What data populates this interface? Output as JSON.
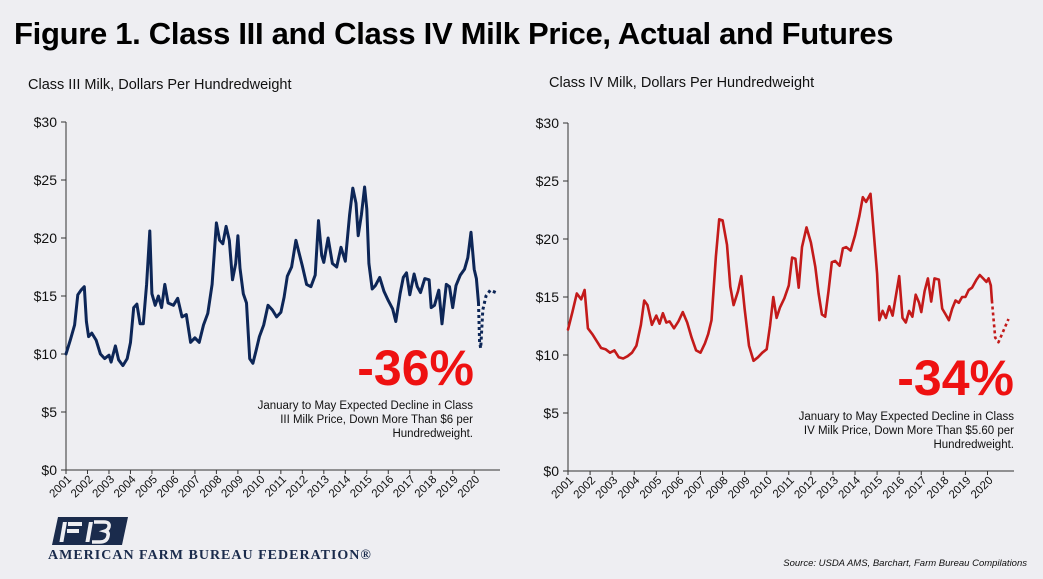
{
  "figure_title": "Figure 1. Class III and Class IV Milk Price, Actual and Futures",
  "source": "Source: USDA AMS, Barchart, Farm Bureau Compilations",
  "org_name": "AMERICAN FARM BUREAU FEDERATION®",
  "colors": {
    "class3": "#0d2657",
    "class4": "#c31a1a",
    "callout": "#ee1111",
    "background": "#eeeef2"
  },
  "chart_data": [
    {
      "type": "line",
      "ylabel": "Class III Milk, Dollars Per Hundredweight",
      "ylim": [
        0,
        30
      ],
      "xlim": [
        2001,
        2021.2
      ],
      "y_ticks": [
        0,
        5,
        10,
        15,
        20,
        25,
        30
      ],
      "y_tick_labels": [
        "$0",
        "$5",
        "$10",
        "$15",
        "$20",
        "$25",
        "$30"
      ],
      "x_tick_labels": [
        "2001",
        "2002",
        "2003",
        "2004",
        "2005",
        "2006",
        "2007",
        "2008",
        "2009",
        "2010",
        "2011",
        "2012",
        "2013",
        "2014",
        "2015",
        "2016",
        "2017",
        "2018",
        "2019",
        "2020"
      ],
      "callout_value": "-36%",
      "callout_text": [
        "January to May Expected Decline in Class",
        "III Milk Price, Down More Than $6 per",
        "Hundredweight."
      ],
      "series": [
        {
          "style": "solid",
          "points": [
            [
              2001.0,
              10.0
            ],
            [
              2001.2,
              11.2
            ],
            [
              2001.4,
              12.5
            ],
            [
              2001.55,
              15.1
            ],
            [
              2001.7,
              15.5
            ],
            [
              2001.85,
              15.8
            ],
            [
              2001.95,
              12.8
            ],
            [
              2002.05,
              11.5
            ],
            [
              2002.2,
              11.8
            ],
            [
              2002.4,
              11.2
            ],
            [
              2002.6,
              10.0
            ],
            [
              2002.8,
              9.6
            ],
            [
              2003.0,
              9.9
            ],
            [
              2003.1,
              9.3
            ],
            [
              2003.3,
              10.7
            ],
            [
              2003.45,
              9.5
            ],
            [
              2003.65,
              9.0
            ],
            [
              2003.85,
              9.6
            ],
            [
              2004.0,
              11.0
            ],
            [
              2004.15,
              14.0
            ],
            [
              2004.3,
              14.3
            ],
            [
              2004.45,
              12.6
            ],
            [
              2004.6,
              12.6
            ],
            [
              2004.75,
              16.0
            ],
            [
              2004.9,
              20.6
            ],
            [
              2005.0,
              15.2
            ],
            [
              2005.15,
              14.2
            ],
            [
              2005.3,
              15.0
            ],
            [
              2005.45,
              14.0
            ],
            [
              2005.6,
              16.0
            ],
            [
              2005.75,
              14.4
            ],
            [
              2006.0,
              14.2
            ],
            [
              2006.2,
              14.8
            ],
            [
              2006.4,
              13.2
            ],
            [
              2006.6,
              13.4
            ],
            [
              2006.8,
              11.0
            ],
            [
              2007.0,
              11.4
            ],
            [
              2007.2,
              11.0
            ],
            [
              2007.4,
              12.5
            ],
            [
              2007.6,
              13.5
            ],
            [
              2007.8,
              16.0
            ],
            [
              2008.0,
              21.3
            ],
            [
              2008.15,
              19.8
            ],
            [
              2008.3,
              19.5
            ],
            [
              2008.45,
              21.0
            ],
            [
              2008.6,
              19.8
            ],
            [
              2008.75,
              16.4
            ],
            [
              2008.9,
              17.8
            ],
            [
              2009.0,
              20.2
            ],
            [
              2009.1,
              17.4
            ],
            [
              2009.25,
              15.2
            ],
            [
              2009.4,
              14.4
            ],
            [
              2009.55,
              9.6
            ],
            [
              2009.7,
              9.2
            ],
            [
              2009.85,
              10.3
            ],
            [
              2010.0,
              11.5
            ],
            [
              2010.2,
              12.5
            ],
            [
              2010.4,
              14.2
            ],
            [
              2010.6,
              13.8
            ],
            [
              2010.8,
              13.2
            ],
            [
              2011.0,
              13.6
            ],
            [
              2011.15,
              14.9
            ],
            [
              2011.3,
              16.7
            ],
            [
              2011.5,
              17.5
            ],
            [
              2011.7,
              19.8
            ],
            [
              2011.85,
              18.7
            ],
            [
              2012.0,
              17.6
            ],
            [
              2012.2,
              16.0
            ],
            [
              2012.4,
              15.8
            ],
            [
              2012.6,
              16.8
            ],
            [
              2012.75,
              21.5
            ],
            [
              2012.9,
              18.5
            ],
            [
              2013.0,
              17.9
            ],
            [
              2013.2,
              20.0
            ],
            [
              2013.4,
              17.8
            ],
            [
              2013.6,
              17.5
            ],
            [
              2013.8,
              19.2
            ],
            [
              2014.0,
              18.0
            ],
            [
              2014.2,
              22.0
            ],
            [
              2014.35,
              24.3
            ],
            [
              2014.5,
              23.0
            ],
            [
              2014.6,
              20.2
            ],
            [
              2014.75,
              22.0
            ],
            [
              2014.9,
              24.4
            ],
            [
              2015.0,
              22.5
            ],
            [
              2015.1,
              17.8
            ],
            [
              2015.25,
              15.6
            ],
            [
              2015.4,
              15.9
            ],
            [
              2015.6,
              16.6
            ],
            [
              2015.8,
              15.4
            ],
            [
              2016.0,
              14.6
            ],
            [
              2016.2,
              13.9
            ],
            [
              2016.35,
              12.8
            ],
            [
              2016.55,
              15.2
            ],
            [
              2016.7,
              16.6
            ],
            [
              2016.85,
              17.0
            ],
            [
              2017.0,
              15.1
            ],
            [
              2017.2,
              16.9
            ],
            [
              2017.35,
              15.8
            ],
            [
              2017.5,
              15.3
            ],
            [
              2017.7,
              16.5
            ],
            [
              2017.9,
              16.4
            ],
            [
              2018.0,
              14.0
            ],
            [
              2018.15,
              14.2
            ],
            [
              2018.35,
              15.5
            ],
            [
              2018.5,
              12.6
            ],
            [
              2018.7,
              16.0
            ],
            [
              2018.85,
              15.8
            ],
            [
              2019.0,
              14.0
            ],
            [
              2019.15,
              15.9
            ],
            [
              2019.35,
              16.8
            ],
            [
              2019.55,
              17.3
            ],
            [
              2019.7,
              18.3
            ],
            [
              2019.85,
              20.5
            ],
            [
              2020.0,
              17.3
            ],
            [
              2020.1,
              16.5
            ],
            [
              2020.2,
              14.4
            ]
          ]
        },
        {
          "style": "dotted",
          "points": [
            [
              2020.2,
              14.4
            ],
            [
              2020.25,
              11.0
            ],
            [
              2020.3,
              10.5
            ],
            [
              2020.4,
              13.8
            ],
            [
              2020.55,
              15.0
            ],
            [
              2020.75,
              15.5
            ],
            [
              2021.0,
              15.3
            ]
          ]
        }
      ]
    },
    {
      "type": "line",
      "ylabel": "Class IV Milk, Dollars Per Hundredweight",
      "ylim": [
        0,
        30
      ],
      "xlim": [
        2001,
        2021.2
      ],
      "y_ticks": [
        0,
        5,
        10,
        15,
        20,
        25,
        30
      ],
      "y_tick_labels": [
        "$0",
        "$5",
        "$10",
        "$15",
        "$20",
        "$25",
        "$30"
      ],
      "x_tick_labels": [
        "2001",
        "2002",
        "2003",
        "2004",
        "2005",
        "2006",
        "2007",
        "2008",
        "2009",
        "2010",
        "2011",
        "2012",
        "2013",
        "2014",
        "2015",
        "2016",
        "2017",
        "2018",
        "2019",
        "2020"
      ],
      "callout_value": "-34%",
      "callout_text": [
        "January to May Expected Decline in Class",
        "IV Milk Price, Down More Than $5.60 per",
        "Hundredweight."
      ],
      "series": [
        {
          "style": "solid",
          "points": [
            [
              2001.0,
              12.2
            ],
            [
              2001.2,
              13.7
            ],
            [
              2001.4,
              15.3
            ],
            [
              2001.6,
              14.8
            ],
            [
              2001.75,
              15.6
            ],
            [
              2001.9,
              12.3
            ],
            [
              2002.1,
              11.8
            ],
            [
              2002.3,
              11.2
            ],
            [
              2002.5,
              10.6
            ],
            [
              2002.7,
              10.5
            ],
            [
              2002.9,
              10.2
            ],
            [
              2003.1,
              10.4
            ],
            [
              2003.3,
              9.8
            ],
            [
              2003.5,
              9.7
            ],
            [
              2003.7,
              9.9
            ],
            [
              2003.9,
              10.2
            ],
            [
              2004.1,
              10.8
            ],
            [
              2004.3,
              12.6
            ],
            [
              2004.45,
              14.7
            ],
            [
              2004.6,
              14.3
            ],
            [
              2004.8,
              12.6
            ],
            [
              2005.0,
              13.4
            ],
            [
              2005.15,
              12.7
            ],
            [
              2005.3,
              13.6
            ],
            [
              2005.45,
              12.8
            ],
            [
              2005.6,
              12.9
            ],
            [
              2005.8,
              12.3
            ],
            [
              2006.0,
              12.9
            ],
            [
              2006.2,
              13.7
            ],
            [
              2006.4,
              12.8
            ],
            [
              2006.6,
              11.5
            ],
            [
              2006.8,
              10.4
            ],
            [
              2007.0,
              10.2
            ],
            [
              2007.2,
              11.0
            ],
            [
              2007.35,
              11.8
            ],
            [
              2007.5,
              13.0
            ],
            [
              2007.7,
              18.5
            ],
            [
              2007.85,
              21.7
            ],
            [
              2008.0,
              21.6
            ],
            [
              2008.2,
              19.5
            ],
            [
              2008.35,
              15.9
            ],
            [
              2008.5,
              14.3
            ],
            [
              2008.7,
              15.5
            ],
            [
              2008.85,
              16.8
            ],
            [
              2009.0,
              14.0
            ],
            [
              2009.2,
              10.8
            ],
            [
              2009.4,
              9.5
            ],
            [
              2009.6,
              9.8
            ],
            [
              2009.8,
              10.2
            ],
            [
              2010.0,
              10.5
            ],
            [
              2010.15,
              12.5
            ],
            [
              2010.3,
              15.0
            ],
            [
              2010.45,
              13.2
            ],
            [
              2010.6,
              14.1
            ],
            [
              2010.8,
              14.9
            ],
            [
              2011.0,
              16.0
            ],
            [
              2011.15,
              18.4
            ],
            [
              2011.3,
              18.3
            ],
            [
              2011.45,
              15.8
            ],
            [
              2011.6,
              19.3
            ],
            [
              2011.8,
              21.0
            ],
            [
              2012.0,
              19.7
            ],
            [
              2012.2,
              17.6
            ],
            [
              2012.35,
              15.3
            ],
            [
              2012.5,
              13.5
            ],
            [
              2012.65,
              13.3
            ],
            [
              2012.8,
              15.5
            ],
            [
              2012.95,
              18.0
            ],
            [
              2013.1,
              18.1
            ],
            [
              2013.3,
              17.7
            ],
            [
              2013.45,
              19.2
            ],
            [
              2013.6,
              19.3
            ],
            [
              2013.8,
              19.0
            ],
            [
              2014.0,
              20.3
            ],
            [
              2014.2,
              22.0
            ],
            [
              2014.35,
              23.6
            ],
            [
              2014.5,
              23.2
            ],
            [
              2014.7,
              23.9
            ],
            [
              2014.85,
              20.5
            ],
            [
              2015.0,
              17.0
            ],
            [
              2015.1,
              13.0
            ],
            [
              2015.25,
              13.8
            ],
            [
              2015.4,
              13.2
            ],
            [
              2015.55,
              14.2
            ],
            [
              2015.7,
              13.4
            ],
            [
              2015.85,
              15.1
            ],
            [
              2016.0,
              16.8
            ],
            [
              2016.15,
              13.2
            ],
            [
              2016.3,
              12.8
            ],
            [
              2016.45,
              13.8
            ],
            [
              2016.6,
              13.3
            ],
            [
              2016.75,
              15.2
            ],
            [
              2016.9,
              14.5
            ],
            [
              2017.0,
              13.7
            ],
            [
              2017.15,
              15.5
            ],
            [
              2017.3,
              16.6
            ],
            [
              2017.45,
              14.6
            ],
            [
              2017.6,
              16.6
            ],
            [
              2017.8,
              16.5
            ],
            [
              2017.95,
              14.0
            ],
            [
              2018.1,
              13.5
            ],
            [
              2018.25,
              13.0
            ],
            [
              2018.4,
              14.0
            ],
            [
              2018.55,
              14.7
            ],
            [
              2018.7,
              14.5
            ],
            [
              2018.85,
              15.0
            ],
            [
              2019.0,
              15.0
            ],
            [
              2019.15,
              15.6
            ],
            [
              2019.3,
              15.8
            ],
            [
              2019.5,
              16.5
            ],
            [
              2019.65,
              16.9
            ],
            [
              2019.8,
              16.6
            ],
            [
              2019.95,
              16.3
            ],
            [
              2020.05,
              16.6
            ],
            [
              2020.15,
              16.0
            ],
            [
              2020.2,
              14.7
            ]
          ]
        },
        {
          "style": "dotted",
          "points": [
            [
              2020.2,
              14.7
            ],
            [
              2020.35,
              11.5
            ],
            [
              2020.5,
              11.1
            ],
            [
              2020.7,
              12.0
            ],
            [
              2020.95,
              13.1
            ]
          ]
        }
      ]
    }
  ]
}
